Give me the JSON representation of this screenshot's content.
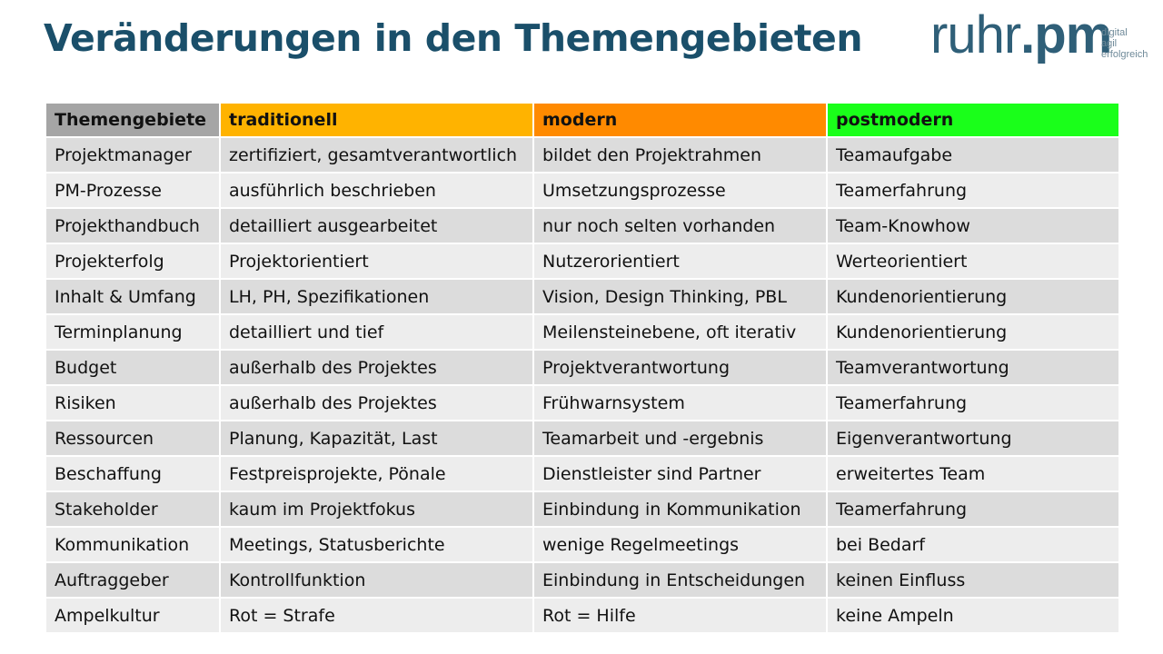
{
  "title": "Veränderungen in den Themengebieten",
  "logo": {
    "text_thin": "ruhr",
    "text_dot": ".",
    "text_bold": "pm",
    "tagline": [
      "digital",
      "agil",
      "erfolgreich"
    ]
  },
  "colors": {
    "title": "#1a4f6a",
    "header_themengebiete": "#a5a5a5",
    "header_traditionell": "#ffb300",
    "header_modern": "#ff8a00",
    "header_postmodern": "#1aff1a"
  },
  "table": {
    "headers": [
      "Themengebiete",
      "traditionell",
      "modern",
      "postmodern"
    ],
    "rows": [
      [
        "Projektmanager",
        "zertifiziert, gesamtverantwortlich",
        "bildet den Projektrahmen",
        "Teamaufgabe"
      ],
      [
        "PM-Prozesse",
        "ausführlich beschrieben",
        "Umsetzungsprozesse",
        "Teamerfahrung"
      ],
      [
        "Projekthandbuch",
        "detailliert ausgearbeitet",
        "nur noch selten vorhanden",
        "Team-Knowhow"
      ],
      [
        "Projekterfolg",
        "Projektorientiert",
        "Nutzerorientiert",
        "Werteorientiert"
      ],
      [
        "Inhalt & Umfang",
        "LH, PH, Spezifikationen",
        "Vision, Design Thinking, PBL",
        "Kundenorientierung"
      ],
      [
        "Terminplanung",
        "detailliert und tief",
        "Meilensteinebene, oft iterativ",
        "Kundenorientierung"
      ],
      [
        "Budget",
        "außerhalb des Projektes",
        "Projektverantwortung",
        "Teamverantwortung"
      ],
      [
        "Risiken",
        "außerhalb des Projektes",
        "Frühwarnsystem",
        "Teamerfahrung"
      ],
      [
        "Ressourcen",
        "Planung, Kapazität, Last",
        "Teamarbeit und -ergebnis",
        "Eigenverantwortung"
      ],
      [
        "Beschaffung",
        "Festpreisprojekte, Pönale",
        "Dienstleister sind Partner",
        "erweitertes Team"
      ],
      [
        "Stakeholder",
        "kaum im Projektfokus",
        "Einbindung in Kommunikation",
        "Teamerfahrung"
      ],
      [
        "Kommunikation",
        "Meetings, Statusberichte",
        "wenige Regelmeetings",
        "bei Bedarf"
      ],
      [
        "Auftraggeber",
        "Kontrollfunktion",
        "Einbindung in Entscheidungen",
        "keinen Einfluss"
      ],
      [
        "Ampelkultur",
        "Rot = Strafe",
        "Rot = Hilfe",
        "keine Ampeln"
      ]
    ]
  }
}
